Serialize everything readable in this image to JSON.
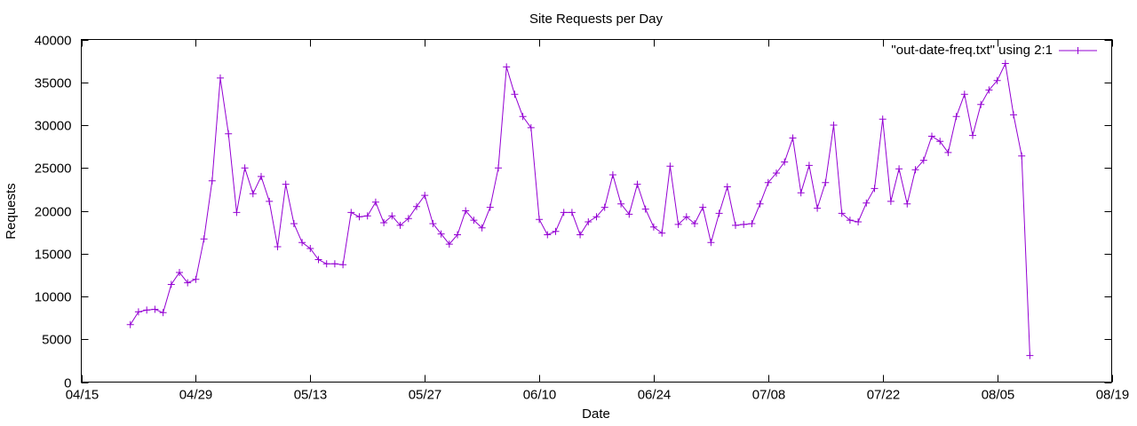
{
  "chart_data": {
    "type": "line",
    "title": "Site Requests per Day",
    "xlabel": "Date",
    "ylabel": "Requests",
    "x_tick_labels": [
      "04/15",
      "04/29",
      "05/13",
      "05/27",
      "06/10",
      "06/24",
      "07/08",
      "07/22",
      "08/05",
      "08/19"
    ],
    "x_tick_dates": [
      "04-15",
      "04-29",
      "05-13",
      "05-27",
      "06-10",
      "06-24",
      "07-08",
      "07-22",
      "08-05",
      "08-19"
    ],
    "xlim": [
      "04-15",
      "08-19"
    ],
    "ylim": [
      0,
      40000
    ],
    "y_ticks": [
      0,
      5000,
      10000,
      15000,
      20000,
      25000,
      30000,
      35000,
      40000
    ],
    "grid": false,
    "legend_position": "top-right",
    "line_color": "#9400d3",
    "series": [
      {
        "name": "\"out-date-freq.txt\" using 2:1",
        "x": [
          "04-21",
          "04-22",
          "04-23",
          "04-24",
          "04-25",
          "04-26",
          "04-27",
          "04-28",
          "04-29",
          "04-30",
          "05-01",
          "05-02",
          "05-03",
          "05-04",
          "05-05",
          "05-06",
          "05-07",
          "05-08",
          "05-09",
          "05-10",
          "05-11",
          "05-12",
          "05-13",
          "05-14",
          "05-15",
          "05-16",
          "05-17",
          "05-18",
          "05-19",
          "05-20",
          "05-21",
          "05-22",
          "05-23",
          "05-24",
          "05-25",
          "05-26",
          "05-27",
          "05-28",
          "05-29",
          "05-30",
          "05-31",
          "06-01",
          "06-02",
          "06-03",
          "06-04",
          "06-05",
          "06-06",
          "06-07",
          "06-08",
          "06-09",
          "06-10",
          "06-11",
          "06-12",
          "06-13",
          "06-14",
          "06-15",
          "06-16",
          "06-17",
          "06-18",
          "06-19",
          "06-20",
          "06-21",
          "06-22",
          "06-23",
          "06-24",
          "06-25",
          "06-26",
          "06-27",
          "06-28",
          "06-29",
          "06-30",
          "07-01",
          "07-02",
          "07-03",
          "07-04",
          "07-05",
          "07-06",
          "07-07",
          "07-08",
          "07-09",
          "07-10",
          "07-11",
          "07-12",
          "07-13",
          "07-14",
          "07-15",
          "07-16",
          "07-17",
          "07-18",
          "07-19",
          "07-20",
          "07-21",
          "07-22",
          "07-23",
          "07-24",
          "07-25",
          "07-26",
          "07-27",
          "07-28",
          "07-29",
          "07-30",
          "07-31",
          "08-01",
          "08-02",
          "08-03",
          "08-04",
          "08-05",
          "08-06",
          "08-07",
          "08-08",
          "08-09"
        ],
        "values": [
          6700,
          8200,
          8400,
          8500,
          8100,
          11400,
          12800,
          11600,
          12000,
          16700,
          23500,
          35500,
          29000,
          19800,
          25000,
          22000,
          24000,
          21100,
          15800,
          23100,
          18500,
          16300,
          15600,
          14300,
          13800,
          13800,
          13700,
          19800,
          19300,
          19400,
          21000,
          18600,
          19400,
          18300,
          19100,
          20500,
          21800,
          18500,
          17300,
          16100,
          17200,
          20000,
          18900,
          18000,
          20400,
          25000,
          36800,
          33600,
          31000,
          29700,
          19000,
          17200,
          17600,
          19800,
          19800,
          17200,
          18700,
          19300,
          20400,
          24200,
          20800,
          19600,
          23100,
          20200,
          18100,
          17400,
          25200,
          18400,
          19300,
          18500,
          20400,
          16300,
          19700,
          22800,
          18300,
          18400,
          18500,
          20800,
          23300,
          24400,
          25700,
          28500,
          22100,
          25300,
          20300,
          23300,
          30000,
          19700,
          18900,
          18700,
          20900,
          22600,
          30700,
          21100,
          24900,
          20800,
          24800,
          25900,
          28700,
          28100,
          26800,
          31000,
          33600,
          28800,
          32400,
          34100,
          35200,
          37200,
          31200,
          26400,
          3100
        ]
      }
    ]
  }
}
